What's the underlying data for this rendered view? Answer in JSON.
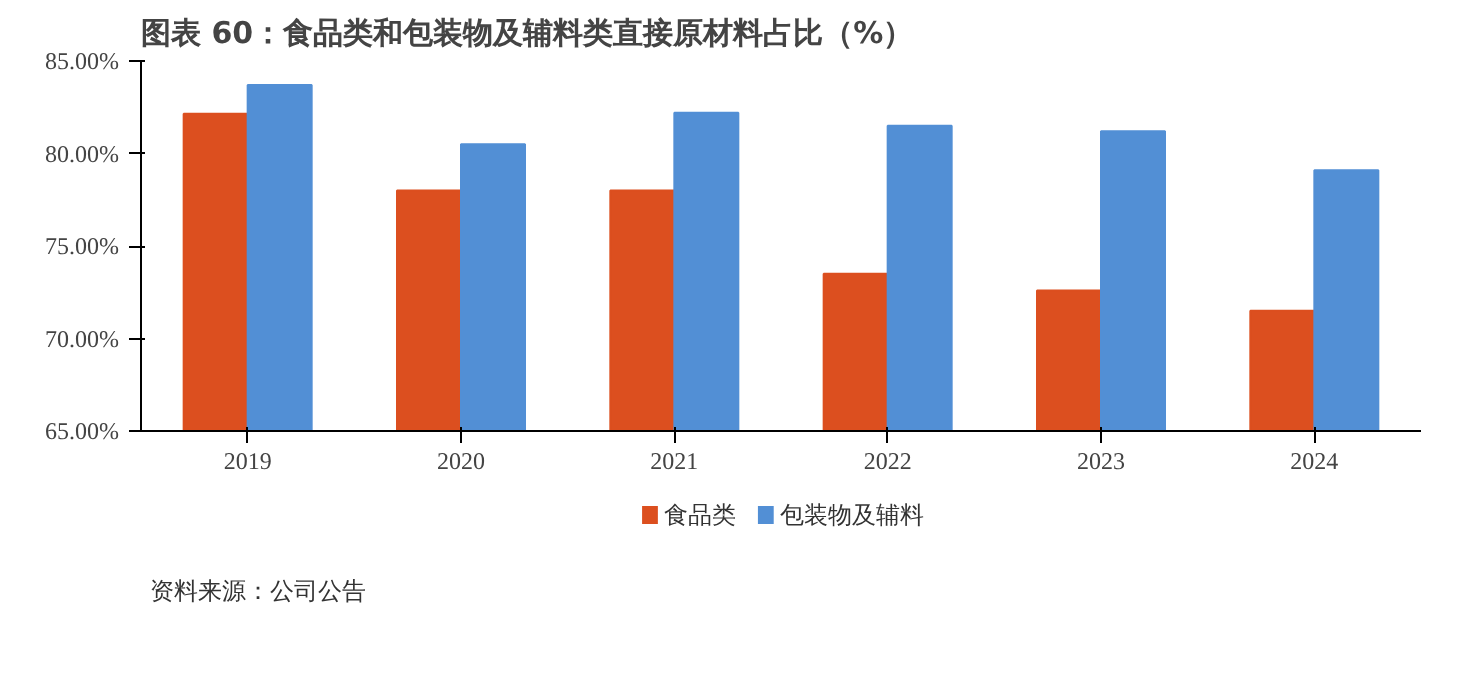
{
  "chart_data": {
    "type": "bar",
    "title": "图表 60：食品类和包装物及辅料类直接原材料占比（%）",
    "categories": [
      "2019",
      "2020",
      "2021",
      "2022",
      "2023",
      "2024"
    ],
    "series": [
      {
        "name": "食品类",
        "color": "#dc4f1f",
        "values": [
          82.15,
          78.0,
          78.0,
          73.5,
          72.6,
          71.5
        ]
      },
      {
        "name": "包装物及辅料",
        "color": "#528fd5",
        "values": [
          83.7,
          80.5,
          82.2,
          81.5,
          81.2,
          79.1
        ]
      }
    ],
    "ylim": [
      65,
      85
    ],
    "yticks": [
      {
        "value": 65,
        "label": "65.00%"
      },
      {
        "value": 70,
        "label": "70.00%"
      },
      {
        "value": 75,
        "label": "75.00%"
      },
      {
        "value": 80,
        "label": "80.00%"
      },
      {
        "value": 85,
        "label": "85.00%"
      }
    ],
    "grid": false,
    "legend": "bottom",
    "annotations": [
      "资料来源：公司公告"
    ]
  }
}
